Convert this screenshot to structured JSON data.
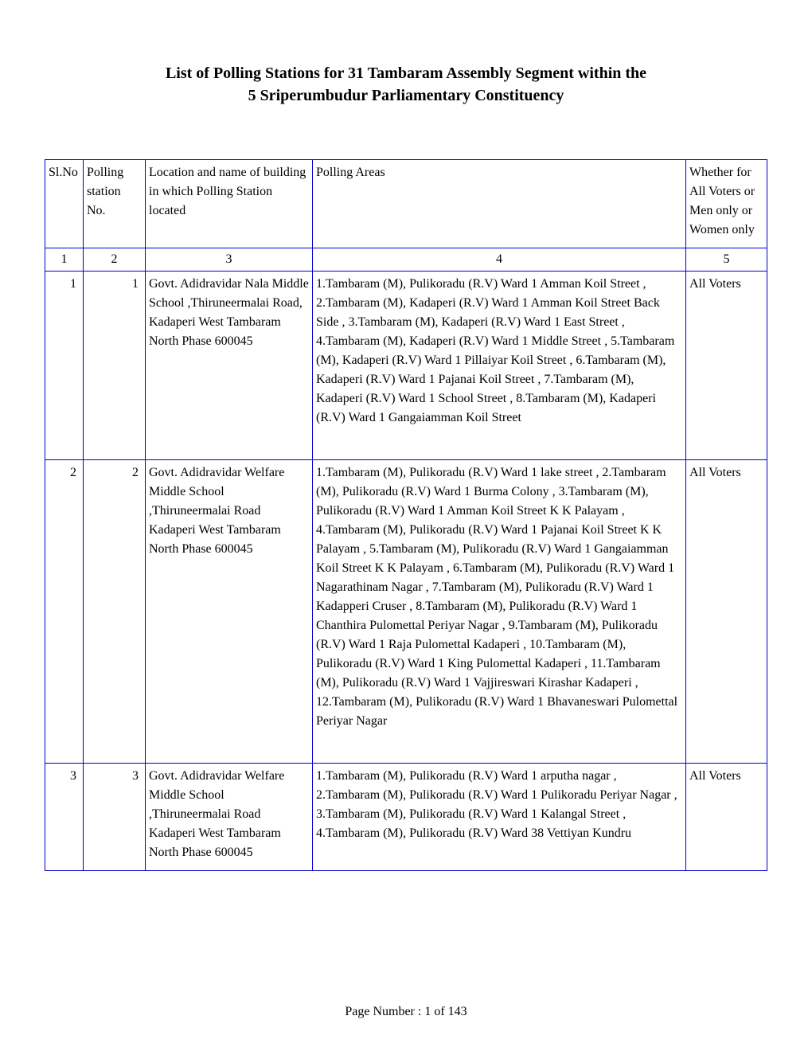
{
  "title_line1": "List of Polling Stations for  31   Tambaram Assembly Segment within the",
  "title_line2": "5   Sriperumbudur Parliamentary Constituency",
  "columns": {
    "c1": "Sl.No",
    "c2": "Polling station No.",
    "c3": "Location and name of building in which  Polling Station located",
    "c4": "Polling Areas",
    "c5": "Whether for All Voters or Men only or Women only"
  },
  "col_nums": {
    "c1": "1",
    "c2": "2",
    "c3": "3",
    "c4": "4",
    "c5": "5"
  },
  "rows": [
    {
      "sl": "1",
      "ps": "1",
      "loc": "Govt. Adidravidar Nala Middle School  ,Thiruneermalai Road, Kadaperi West Tambaram North Phase 600045",
      "areas": "1.Tambaram (M), Pulikoradu (R.V) Ward 1 Amman Koil Street , 2.Tambaram (M), Kadaperi (R.V) Ward 1 Amman Koil Street Back Side , 3.Tambaram (M), Kadaperi (R.V) Ward 1 East Street , 4.Tambaram (M), Kadaperi (R.V) Ward 1 Middle Street , 5.Tambaram (M), Kadaperi (R.V) Ward 1 Pillaiyar Koil Street , 6.Tambaram (M), Kadaperi (R.V) Ward 1 Pajanai Koil Street , 7.Tambaram (M), Kadaperi (R.V) Ward 1 School Street , 8.Tambaram (M), Kadaperi (R.V) Ward 1 Gangaiamman Koil Street",
      "voters": "All Voters"
    },
    {
      "sl": "2",
      "ps": "2",
      "loc": "Govt. Adidravidar Welfare  Middle School  ,Thiruneermalai Road Kadaperi West Tambaram North Phase 600045",
      "areas": "1.Tambaram (M), Pulikoradu (R.V) Ward 1 lake street , 2.Tambaram (M), Pulikoradu (R.V) Ward 1 Burma Colony , 3.Tambaram (M), Pulikoradu (R.V) Ward 1 Amman Koil Street K K Palayam , 4.Tambaram (M), Pulikoradu (R.V) Ward 1 Pajanai Koil Street K K Palayam , 5.Tambaram (M), Pulikoradu (R.V) Ward 1 Gangaiamman Koil Street K K Palayam , 6.Tambaram (M), Pulikoradu (R.V) Ward 1 Nagarathinam Nagar , 7.Tambaram (M), Pulikoradu (R.V) Ward 1 Kadapperi Cruser , 8.Tambaram (M), Pulikoradu (R.V) Ward 1 Chanthira Pulomettal Periyar Nagar , 9.Tambaram (M), Pulikoradu (R.V) Ward 1 Raja Pulomettal Kadaperi , 10.Tambaram (M), Pulikoradu (R.V) Ward 1 King Pulomettal Kadaperi , 11.Tambaram (M), Pulikoradu (R.V) Ward 1 Vajjireswari Kirashar Kadaperi , 12.Tambaram (M), Pulikoradu (R.V) Ward 1 Bhavaneswari Pulomettal Periyar Nagar",
      "voters": "All Voters"
    },
    {
      "sl": "3",
      "ps": "3",
      "loc": "Govt. Adidravidar Welfare  Middle School  ,Thiruneermalai Road Kadaperi West Tambaram North Phase 600045",
      "areas": "1.Tambaram (M), Pulikoradu (R.V) Ward 1 arputha nagar , 2.Tambaram (M), Pulikoradu (R.V) Ward 1 Pulikoradu Periyar Nagar , 3.Tambaram (M), Pulikoradu (R.V) Ward 1 Kalangal Street , 4.Tambaram (M), Pulikoradu (R.V) Ward 38 Vettiyan Kundru",
      "voters": "All Voters"
    }
  ],
  "footer": "Page Number : 1 of 143"
}
